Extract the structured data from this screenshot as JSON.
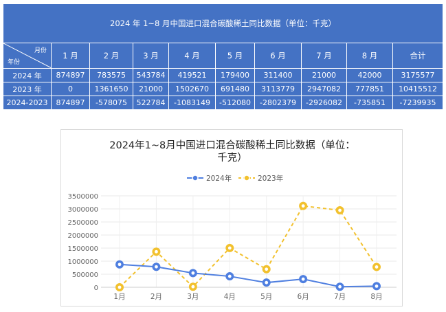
{
  "table": {
    "title": "2024 年 1~8 月中国进口混合碳酸稀土同比数据（单位：千克）",
    "corner_top": "月份",
    "corner_bottom": "年份",
    "headers": [
      "1 月",
      "2 月",
      "3 月",
      "4 月",
      "5 月",
      "6 月",
      "7 月",
      "8 月",
      "合计"
    ],
    "rows": [
      {
        "label": "2024 年",
        "values": [
          "874897",
          "783575",
          "543784",
          "419521",
          "179400",
          "311400",
          "21000",
          "42000",
          "3175577"
        ]
      },
      {
        "label": "2023 年",
        "values": [
          "0",
          "1361650",
          "21000",
          "1502670",
          "691480",
          "3113779",
          "2947082",
          "777851",
          "10415512"
        ]
      },
      {
        "label": "2024-2023",
        "values": [
          "874897",
          "-578075",
          "522784",
          "-1083149",
          "-512080",
          "-2802379",
          "-2926082",
          "-735851",
          "-7239935"
        ]
      }
    ]
  },
  "colors": {
    "table_fill": "#4472c4",
    "series_2024": "#4f7fe0",
    "series_2023": "#f2c12e"
  },
  "chart_data": {
    "type": "line",
    "title_lines": [
      "2024年1~8月中国进口混合碳酸稀土同比数据（单位：",
      "千克）"
    ],
    "categories": [
      "1月",
      "2月",
      "3月",
      "4月",
      "5月",
      "6月",
      "7月",
      "8月"
    ],
    "series": [
      {
        "name": "2024年",
        "values": [
          874897,
          783575,
          543784,
          419521,
          179400,
          311400,
          21000,
          42000
        ],
        "color": "#4f7fe0",
        "dashed": false
      },
      {
        "name": "2023年",
        "values": [
          0,
          1361650,
          21000,
          1502670,
          691480,
          3113779,
          2947082,
          777851
        ],
        "color": "#f2c12e",
        "dashed": true
      }
    ],
    "yticks": [
      "0",
      "500000",
      "1000000",
      "1500000",
      "2000000",
      "2500000",
      "3000000",
      "3500000"
    ],
    "ylim": [
      0,
      3500000
    ],
    "grid": true,
    "legend_position": "top"
  }
}
